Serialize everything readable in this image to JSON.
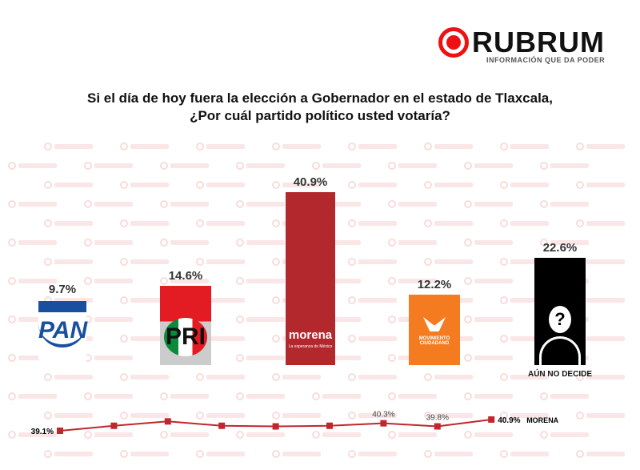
{
  "logo": {
    "name": "RUBRUM",
    "tagline": "INFORMACIÓN QUE DA PODER",
    "watermark": "RUBRUM"
  },
  "title": {
    "line1": "Si el día de hoy fuera la elección a Gobernador en el estado de Tlaxcala,",
    "line2": "¿Por cuál partido político usted votaría?"
  },
  "chart_data": [
    {
      "type": "bar",
      "categories": [
        "PAN",
        "PRI",
        "morena",
        "MOVIMIENTO CIUDADANO",
        "AÚN NO DECIDE"
      ],
      "values": [
        9.7,
        14.6,
        40.9,
        12.2,
        22.6
      ],
      "labels": [
        "9.7%",
        "14.6%",
        "40.9%",
        "12.2%",
        "22.6%"
      ],
      "colors": [
        "#1a4fa0",
        "#e31b23",
        "#b3282d",
        "#f47b20",
        "#000000"
      ],
      "bar_texts": {
        "pan": "PAN",
        "pri": "PRI",
        "morena": "morena",
        "morena_sub": "La esperanza de México",
        "mc": "MOVIMIENTO CIUDADANO",
        "undecided": "AÚN NO DECIDE",
        "question": "?"
      }
    },
    {
      "type": "line",
      "series": [
        {
          "name": "MORENA",
          "values": [
            39.1,
            39.9,
            40.6,
            39.9,
            39.8,
            39.9,
            40.3,
            39.8,
            40.9
          ]
        }
      ],
      "point_labels": {
        "0": "39.1%",
        "6": "40.3%",
        "7": "39.8%",
        "8": "40.9%"
      },
      "color": "#c0272d"
    }
  ]
}
